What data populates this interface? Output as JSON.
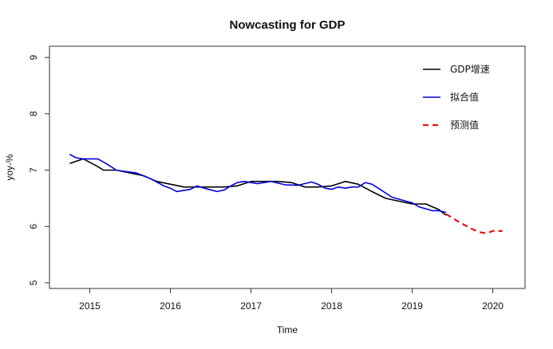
{
  "chart_data": {
    "type": "line",
    "title": "Nowcasting for GDP",
    "xlabel": "Time",
    "ylabel": "yoy-%",
    "xlim": [
      2014.5,
      2020.4
    ],
    "ylim": [
      4.9,
      9.2
    ],
    "x_ticks": [
      {
        "value": 2015,
        "label": "2015"
      },
      {
        "value": 2016,
        "label": "2016"
      },
      {
        "value": 2017,
        "label": "2017"
      },
      {
        "value": 2018,
        "label": "2018"
      },
      {
        "value": 2019,
        "label": "2019"
      },
      {
        "value": 2020,
        "label": "2020"
      }
    ],
    "y_ticks": [
      {
        "value": 5,
        "label": "5"
      },
      {
        "value": 6,
        "label": "6"
      },
      {
        "value": 7,
        "label": "7"
      },
      {
        "value": 8,
        "label": "8"
      },
      {
        "value": 9,
        "label": "9"
      }
    ],
    "grid": false,
    "legend_position": "top-right",
    "series": [
      {
        "name": "GDP增速",
        "color": "#000000",
        "dash": "solid",
        "x": [
          2014.75,
          2014.92,
          2015.08,
          2015.17,
          2015.33,
          2015.5,
          2015.67,
          2015.83,
          2016.0,
          2016.17,
          2016.33,
          2016.5,
          2016.67,
          2016.83,
          2017.0,
          2017.17,
          2017.33,
          2017.5,
          2017.67,
          2017.83,
          2018.0,
          2018.17,
          2018.33,
          2018.5,
          2018.67,
          2018.83,
          2019.0,
          2019.17,
          2019.33,
          2019.42
        ],
        "y": [
          7.12,
          7.2,
          7.08,
          7.0,
          7.0,
          6.95,
          6.9,
          6.8,
          6.75,
          6.7,
          6.7,
          6.7,
          6.7,
          6.72,
          6.8,
          6.8,
          6.8,
          6.78,
          6.7,
          6.7,
          6.72,
          6.8,
          6.75,
          6.62,
          6.5,
          6.45,
          6.4,
          6.4,
          6.3,
          6.2
        ]
      },
      {
        "name": "拟合值",
        "color": "#0000dd",
        "dash": "solid",
        "x": [
          2014.75,
          2014.83,
          2014.92,
          2015.0,
          2015.1,
          2015.2,
          2015.33,
          2015.42,
          2015.58,
          2015.75,
          2015.92,
          2016.0,
          2016.08,
          2016.25,
          2016.33,
          2016.42,
          2016.5,
          2016.58,
          2016.67,
          2016.75,
          2016.83,
          2016.92,
          2017.08,
          2017.25,
          2017.42,
          2017.58,
          2017.75,
          2017.83,
          2017.92,
          2018.0,
          2018.08,
          2018.17,
          2018.25,
          2018.33,
          2018.42,
          2018.5,
          2018.58,
          2018.75,
          2018.92,
          2019.0,
          2019.08,
          2019.25,
          2019.33,
          2019.42
        ],
        "y": [
          7.28,
          7.22,
          7.2,
          7.2,
          7.2,
          7.12,
          7.0,
          6.98,
          6.95,
          6.85,
          6.72,
          6.68,
          6.62,
          6.66,
          6.72,
          6.68,
          6.65,
          6.62,
          6.65,
          6.72,
          6.78,
          6.8,
          6.76,
          6.8,
          6.74,
          6.73,
          6.79,
          6.75,
          6.68,
          6.66,
          6.7,
          6.68,
          6.7,
          6.7,
          6.78,
          6.75,
          6.68,
          6.52,
          6.45,
          6.42,
          6.35,
          6.28,
          6.28,
          6.25
        ]
      },
      {
        "name": "预测值",
        "color": "#e81010",
        "dash": "dashed",
        "x": [
          2019.42,
          2019.58,
          2019.75,
          2019.83,
          2019.92,
          2020.0,
          2020.08,
          2020.12
        ],
        "y": [
          6.22,
          6.08,
          5.95,
          5.9,
          5.88,
          5.92,
          5.92,
          5.92
        ]
      }
    ]
  }
}
